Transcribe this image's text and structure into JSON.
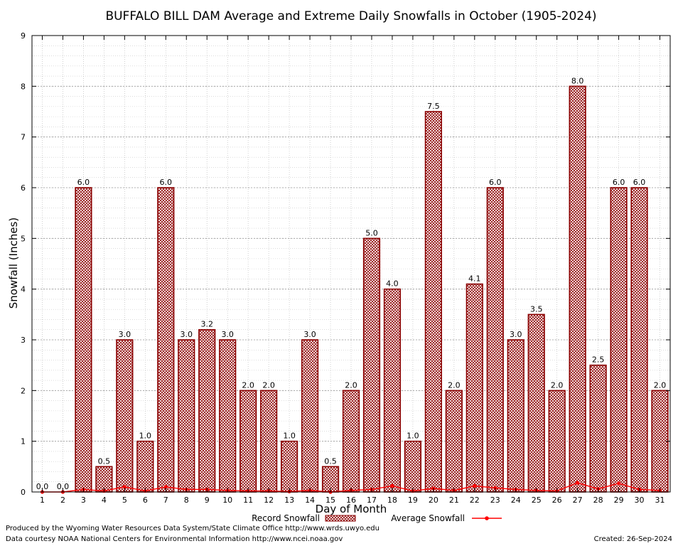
{
  "chart_data": {
    "type": "bar",
    "title": "BUFFALO BILL DAM Average and Extreme Daily Snowfalls in October (1905-2024)",
    "xlabel": "Day of Month",
    "ylabel": "Snowfall (Inches)",
    "ylim": [
      0,
      9
    ],
    "yticks": [
      "0",
      "1",
      "2",
      "3",
      "4",
      "5",
      "6",
      "7",
      "8",
      "9"
    ],
    "categories": [
      "1",
      "2",
      "3",
      "4",
      "5",
      "6",
      "7",
      "8",
      "9",
      "10",
      "11",
      "12",
      "13",
      "14",
      "15",
      "16",
      "17",
      "18",
      "19",
      "20",
      "21",
      "22",
      "23",
      "24",
      "25",
      "26",
      "27",
      "28",
      "29",
      "30",
      "31"
    ],
    "grid": true,
    "legend_position": "bottom-center",
    "series": [
      {
        "name": "Record Snowfall",
        "kind": "bar",
        "color": "#8b0000",
        "values": [
          0.0,
          0.0,
          6.0,
          0.5,
          3.0,
          1.0,
          6.0,
          3.0,
          3.2,
          3.0,
          2.0,
          2.0,
          1.0,
          3.0,
          0.5,
          2.0,
          5.0,
          4.0,
          1.0,
          7.5,
          2.0,
          4.1,
          6.0,
          3.0,
          3.5,
          2.0,
          8.0,
          2.5,
          6.0,
          6.0,
          2.0
        ],
        "labels": [
          "0.0",
          "0.0",
          "6.0",
          "0.5",
          "3.0",
          "1.0",
          "6.0",
          "3.0",
          "3.2",
          "3.0",
          "2.0",
          "2.0",
          "1.0",
          "3.0",
          "0.5",
          "2.0",
          "5.0",
          "4.0",
          "1.0",
          "7.5",
          "2.0",
          "4.1",
          "6.0",
          "3.0",
          "3.5",
          "2.0",
          "8.0",
          "2.5",
          "6.0",
          "6.0",
          "2.0"
        ]
      },
      {
        "name": "Average Snowfall",
        "kind": "line",
        "color": "#ff0000",
        "values": [
          0.0,
          0.0,
          0.05,
          0.02,
          0.1,
          0.02,
          0.1,
          0.05,
          0.05,
          0.03,
          0.02,
          0.02,
          0.01,
          0.03,
          0.0,
          0.03,
          0.05,
          0.12,
          0.02,
          0.07,
          0.03,
          0.12,
          0.08,
          0.05,
          0.03,
          0.02,
          0.18,
          0.06,
          0.17,
          0.05,
          0.03
        ]
      }
    ]
  },
  "footer": {
    "producer": "Produced by the Wyoming Water Resources Data System/State Climate Office http://www.wrds.uwyo.edu",
    "courtesy": "Data courtesy NOAA National Centers for Environmental Information http://www.ncei.noaa.gov",
    "created": "Created:  26-Sep-2024"
  }
}
